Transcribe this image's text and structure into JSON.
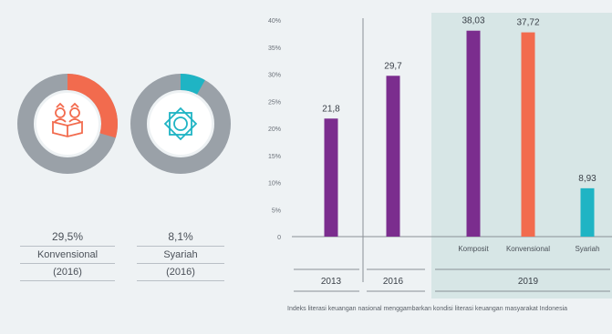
{
  "donuts": [
    {
      "value_pct": 29.5,
      "value_label": "29,5%",
      "label": "Konvensional",
      "year": "(2016)",
      "accent": "#f26b4e",
      "icon": "literacy-book-icon"
    },
    {
      "value_pct": 8.1,
      "value_label": "8,1%",
      "label": "Syariah",
      "year": "(2016)",
      "accent": "#1fb4c4",
      "icon": "islamic-star-icon"
    }
  ],
  "chart_data": {
    "type": "bar",
    "ylim": [
      0,
      40
    ],
    "yticks": [
      "0",
      "5%",
      "10%",
      "15%",
      "20%",
      "25%",
      "30%",
      "35%",
      "40%"
    ],
    "bars": [
      {
        "group": "2013",
        "label": "",
        "value": 21.8,
        "value_label": "21,8",
        "color": "#7b2d8e"
      },
      {
        "group": "2016",
        "label": "",
        "value": 29.7,
        "value_label": "29,7",
        "color": "#7b2d8e"
      },
      {
        "group": "2019",
        "label": "Komposit",
        "value": 38.03,
        "value_label": "38,03",
        "color": "#7b2d8e"
      },
      {
        "group": "2019",
        "label": "Konvensional",
        "value": 37.72,
        "value_label": "37,72",
        "color": "#f26b4e"
      },
      {
        "group": "2019",
        "label": "Syariah",
        "value": 8.93,
        "value_label": "8,93",
        "color": "#1fb4c4"
      }
    ],
    "groups": [
      "2013",
      "2016",
      "2019"
    ],
    "highlight_group": "2019"
  },
  "footnote": "Indeks literasi keuangan nasional menggambarkan kondisi literasi keuangan masyarakat Indonesia"
}
